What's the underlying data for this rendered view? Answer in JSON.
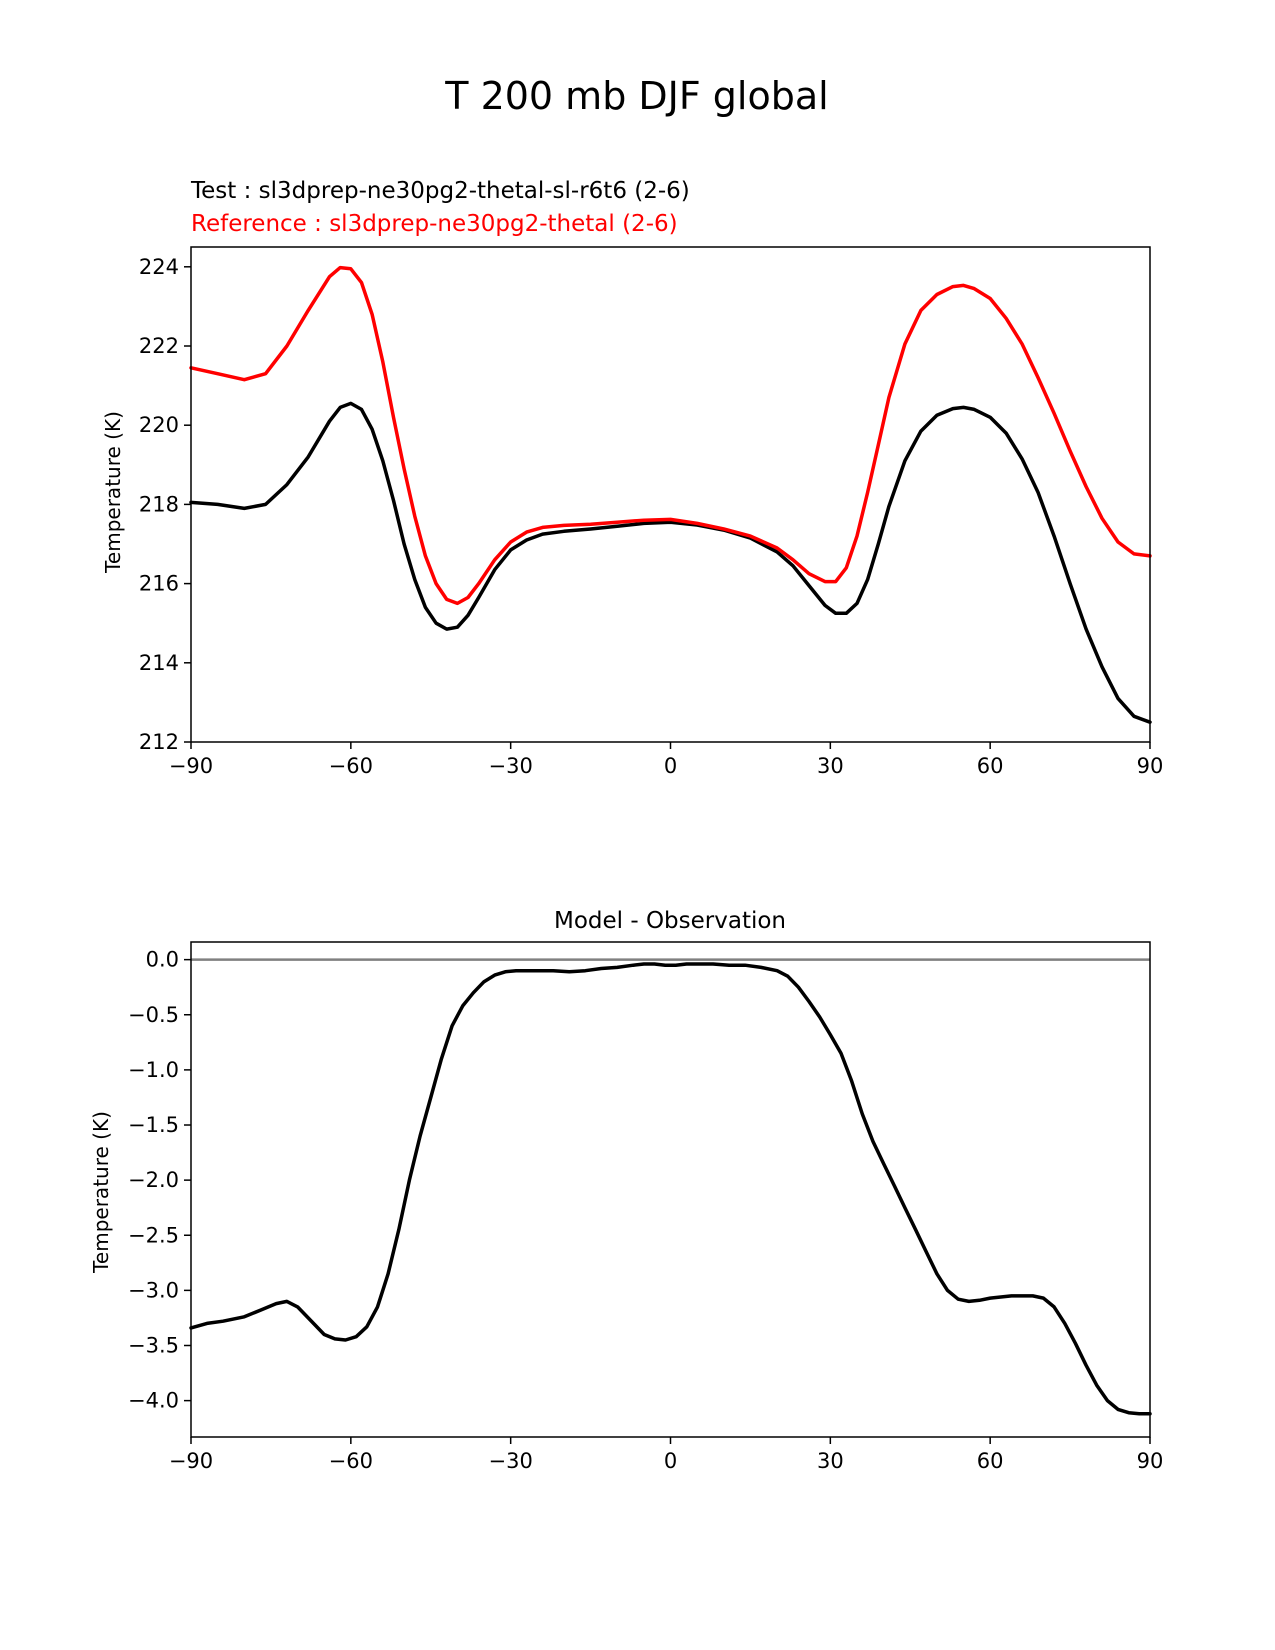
{
  "figure": {
    "title": "T 200 mb DJF global",
    "line_colors": {
      "test": "#000000",
      "reference": "#ff0000",
      "zero_line": "#808080"
    }
  },
  "chart_data": [
    {
      "type": "line",
      "test_label": "Test : sl3dprep-ne30pg2-thetal-sl-r6t6 (2-6)",
      "reference_label": "Reference : sl3dprep-ne30pg2-thetal (2-6)",
      "xlabel": "",
      "ylabel": "Temperature (K)",
      "xlim": [
        -90,
        90
      ],
      "ylim": [
        212,
        224.5
      ],
      "xticks": [
        -90,
        -60,
        -30,
        0,
        30,
        60,
        90
      ],
      "xtick_labels": [
        "−90",
        "−60",
        "−30",
        "0",
        "30",
        "60",
        "90"
      ],
      "yticks": [
        212,
        214,
        216,
        218,
        220,
        222,
        224
      ],
      "ytick_labels": [
        "212",
        "214",
        "216",
        "218",
        "220",
        "222",
        "224"
      ],
      "grid": false,
      "series": [
        {
          "key": "test",
          "color": "#000000",
          "x": [
            -90,
            -85,
            -80,
            -76,
            -72,
            -68,
            -64,
            -62,
            -60,
            -58,
            -56,
            -54,
            -52,
            -50,
            -48,
            -46,
            -44,
            -42,
            -40,
            -38,
            -36,
            -33,
            -30,
            -27,
            -24,
            -20,
            -15,
            -10,
            -5,
            0,
            5,
            10,
            15,
            20,
            23,
            26,
            29,
            31,
            33,
            35,
            37,
            39,
            41,
            44,
            47,
            50,
            53,
            55,
            57,
            60,
            63,
            66,
            69,
            72,
            75,
            78,
            81,
            84,
            87,
            90
          ],
          "y": [
            218.05,
            218.0,
            217.9,
            218.0,
            218.5,
            219.2,
            220.1,
            220.45,
            220.55,
            220.4,
            219.9,
            219.1,
            218.1,
            217.0,
            216.1,
            215.4,
            215.0,
            214.85,
            214.9,
            215.2,
            215.65,
            216.35,
            216.85,
            217.1,
            217.25,
            217.32,
            217.38,
            217.45,
            217.52,
            217.55,
            217.48,
            217.35,
            217.15,
            216.8,
            216.45,
            215.95,
            215.45,
            215.25,
            215.25,
            215.5,
            216.1,
            217.0,
            217.95,
            219.1,
            219.85,
            220.25,
            220.42,
            220.45,
            220.4,
            220.2,
            219.8,
            219.15,
            218.3,
            217.2,
            216.0,
            214.85,
            213.9,
            213.1,
            212.65,
            212.5
          ]
        },
        {
          "key": "reference",
          "color": "#ff0000",
          "x": [
            -90,
            -85,
            -80,
            -76,
            -72,
            -68,
            -64,
            -62,
            -60,
            -58,
            -56,
            -54,
            -52,
            -50,
            -48,
            -46,
            -44,
            -42,
            -40,
            -38,
            -36,
            -33,
            -30,
            -27,
            -24,
            -20,
            -15,
            -10,
            -5,
            0,
            5,
            10,
            15,
            20,
            23,
            26,
            29,
            31,
            33,
            35,
            37,
            39,
            41,
            44,
            47,
            50,
            53,
            55,
            57,
            60,
            63,
            66,
            69,
            72,
            75,
            78,
            81,
            84,
            87,
            90
          ],
          "y": [
            221.45,
            221.3,
            221.15,
            221.3,
            222.0,
            222.9,
            223.75,
            223.98,
            223.95,
            223.6,
            222.8,
            221.6,
            220.2,
            218.9,
            217.7,
            216.7,
            216.0,
            215.6,
            215.5,
            215.65,
            216.0,
            216.6,
            217.05,
            217.3,
            217.42,
            217.47,
            217.5,
            217.55,
            217.6,
            217.62,
            217.52,
            217.38,
            217.2,
            216.9,
            216.6,
            216.25,
            216.05,
            216.05,
            216.4,
            217.2,
            218.3,
            219.5,
            220.7,
            222.05,
            222.9,
            223.3,
            223.5,
            223.53,
            223.45,
            223.2,
            222.7,
            222.05,
            221.2,
            220.3,
            219.35,
            218.45,
            217.65,
            217.05,
            216.75,
            216.7
          ]
        }
      ]
    },
    {
      "type": "line",
      "title": "Model - Observation",
      "xlabel": "",
      "ylabel": "Temperature (K)",
      "xlim": [
        -90,
        90
      ],
      "ylim": [
        -4.33,
        0.16
      ],
      "xticks": [
        -90,
        -60,
        -30,
        0,
        30,
        60,
        90
      ],
      "xtick_labels": [
        "−90",
        "−60",
        "−30",
        "0",
        "30",
        "60",
        "90"
      ],
      "yticks": [
        0.0,
        -0.5,
        -1.0,
        -1.5,
        -2.0,
        -2.5,
        -3.0,
        -3.5,
        -4.0
      ],
      "ytick_labels": [
        "0.0",
        "−0.5",
        "−1.0",
        "−1.5",
        "−2.0",
        "−2.5",
        "−3.0",
        "−3.5",
        "−4.0"
      ],
      "zero_line": 0,
      "grid": false,
      "series": [
        {
          "key": "difference",
          "color": "#000000",
          "x": [
            -90,
            -87,
            -84,
            -80,
            -77,
            -74,
            -72,
            -70,
            -67,
            -65,
            -63,
            -61,
            -59,
            -57,
            -55,
            -53,
            -51,
            -49,
            -47,
            -45,
            -43,
            -41,
            -39,
            -37,
            -35,
            -33,
            -31,
            -29,
            -27,
            -25,
            -22,
            -19,
            -16,
            -13,
            -10,
            -7,
            -5,
            -3,
            -1,
            1,
            3,
            5,
            8,
            11,
            14,
            17,
            20,
            22,
            24,
            26,
            28,
            30,
            32,
            34,
            36,
            38,
            40,
            42,
            44,
            46,
            48,
            50,
            52,
            54,
            56,
            58,
            60,
            62,
            64,
            66,
            68,
            70,
            72,
            74,
            76,
            78,
            80,
            82,
            84,
            86,
            88,
            90
          ],
          "y": [
            -3.34,
            -3.3,
            -3.28,
            -3.24,
            -3.18,
            -3.12,
            -3.1,
            -3.15,
            -3.3,
            -3.4,
            -3.44,
            -3.45,
            -3.42,
            -3.33,
            -3.15,
            -2.85,
            -2.45,
            -2.0,
            -1.6,
            -1.25,
            -0.9,
            -0.6,
            -0.42,
            -0.3,
            -0.2,
            -0.14,
            -0.11,
            -0.1,
            -0.1,
            -0.1,
            -0.1,
            -0.11,
            -0.1,
            -0.08,
            -0.07,
            -0.05,
            -0.04,
            -0.04,
            -0.05,
            -0.05,
            -0.04,
            -0.04,
            -0.04,
            -0.05,
            -0.05,
            -0.07,
            -0.1,
            -0.15,
            -0.25,
            -0.38,
            -0.52,
            -0.68,
            -0.85,
            -1.1,
            -1.4,
            -1.65,
            -1.85,
            -2.05,
            -2.25,
            -2.45,
            -2.65,
            -2.85,
            -3.0,
            -3.08,
            -3.1,
            -3.09,
            -3.07,
            -3.06,
            -3.05,
            -3.05,
            -3.05,
            -3.07,
            -3.15,
            -3.3,
            -3.48,
            -3.68,
            -3.86,
            -4.0,
            -4.08,
            -4.11,
            -4.12,
            -4.12
          ]
        }
      ]
    }
  ]
}
